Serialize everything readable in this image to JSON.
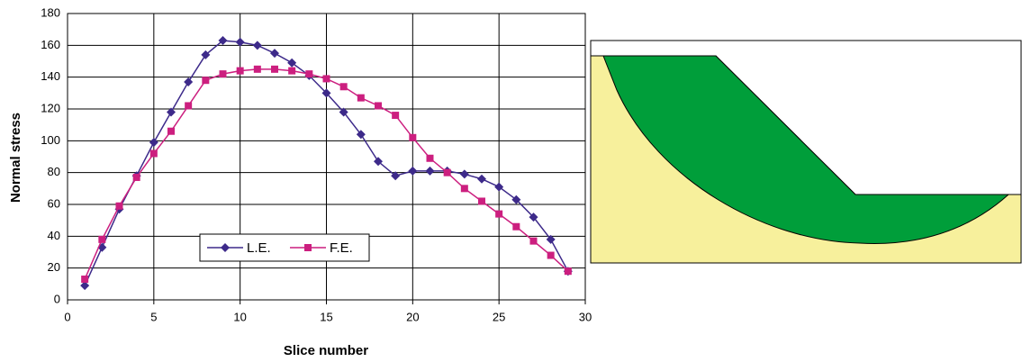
{
  "chart_data": {
    "type": "line",
    "x_label": "Slice number",
    "y_label": "Normal stress",
    "x": [
      1,
      2,
      3,
      4,
      5,
      6,
      7,
      8,
      9,
      10,
      11,
      12,
      13,
      14,
      15,
      16,
      17,
      18,
      19,
      20,
      21,
      22,
      23,
      24,
      25,
      26,
      27,
      28,
      29
    ],
    "series": [
      {
        "name": "L.E.",
        "color": "#3d2a8a",
        "marker": "diamond",
        "values": [
          9,
          33,
          57,
          78,
          99,
          118,
          137,
          154,
          163,
          162,
          160,
          155,
          149,
          141,
          130,
          118,
          104,
          87,
          78,
          81,
          81,
          81,
          79,
          76,
          71,
          63,
          52,
          38,
          18
        ]
      },
      {
        "name": "F.E.",
        "color": "#cc1f7f",
        "marker": "square",
        "values": [
          13,
          38,
          59,
          77,
          92,
          106,
          122,
          138,
          142,
          144,
          145,
          145,
          144,
          142,
          139,
          134,
          127,
          122,
          116,
          102,
          89,
          80,
          70,
          62,
          54,
          46,
          37,
          28,
          18
        ]
      }
    ],
    "xlim": [
      0,
      30
    ],
    "xticks": [
      0,
      5,
      10,
      15,
      20,
      25,
      30
    ],
    "ylim": [
      0,
      180
    ],
    "yticks": [
      0,
      20,
      40,
      60,
      80,
      100,
      120,
      140,
      160,
      180
    ],
    "grid": true,
    "legend": "lower left"
  }
}
